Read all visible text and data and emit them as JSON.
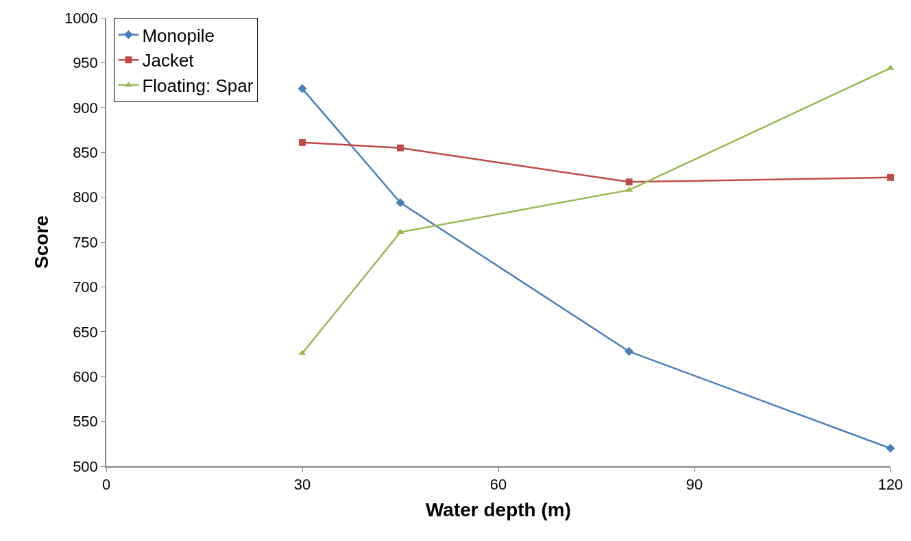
{
  "chart_data": {
    "type": "line",
    "xlabel": "Water depth (m)",
    "ylabel": "Score",
    "x": [
      30,
      45,
      80,
      120
    ],
    "series": [
      {
        "name": "Monopile",
        "color": "#4a7ebb",
        "marker": "diamond",
        "values": [
          921,
          794,
          628,
          520
        ]
      },
      {
        "name": "Jacket",
        "color": "#be4b48",
        "marker": "square",
        "values": [
          861,
          855,
          817,
          822
        ]
      },
      {
        "name": "Floating: Spar",
        "color": "#98b954",
        "marker": "triangle",
        "values": [
          626,
          761,
          808,
          944
        ]
      }
    ],
    "xlim": [
      0,
      120
    ],
    "xticks": [
      0,
      30,
      60,
      90,
      120
    ],
    "ylim": [
      500,
      1000
    ],
    "yticks": [
      500,
      550,
      600,
      650,
      700,
      750,
      800,
      850,
      900,
      950,
      1000
    ],
    "legend": "top left",
    "line_style": "solid"
  }
}
